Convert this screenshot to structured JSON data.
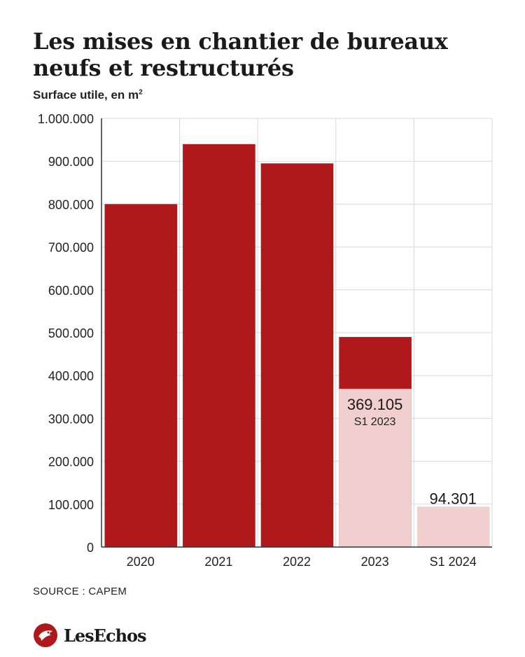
{
  "title": "Les mises en chantier de bureaux neufs et restructurés",
  "subtitle_text": "Surface utile, en m",
  "subtitle_sup": "2",
  "source": "SOURCE : CAPEM",
  "brand": {
    "name": "LesEchos",
    "icon": "les-echos-logo-icon"
  },
  "colors": {
    "primary": "#b0191c",
    "light": "#f2cfcf",
    "grid": "#d9d9d9",
    "axis": "#333333"
  },
  "chart_data": {
    "type": "bar",
    "categories": [
      "2020",
      "2021",
      "2022",
      "2023",
      "S1 2024"
    ],
    "series": [
      {
        "name": "",
        "values": [
          800000,
          940000,
          895000,
          490000,
          null
        ]
      },
      {
        "name": "",
        "values": [
          null,
          null,
          null,
          369105,
          94301
        ]
      }
    ],
    "annotations": [
      {
        "category": "2023",
        "value_label": "369.105",
        "sub_label": "S1 2023"
      },
      {
        "category": "S1 2024",
        "value_label": "94.301"
      }
    ],
    "ytick_labels": [
      "0",
      "100.000",
      "200.000",
      "300.000",
      "400.000",
      "500.000",
      "600.000",
      "700.000",
      "800.000",
      "900.000",
      "1.000.000"
    ],
    "ylim": [
      0,
      1000000
    ],
    "grid": true,
    "xlabel": "",
    "ylabel": ""
  }
}
